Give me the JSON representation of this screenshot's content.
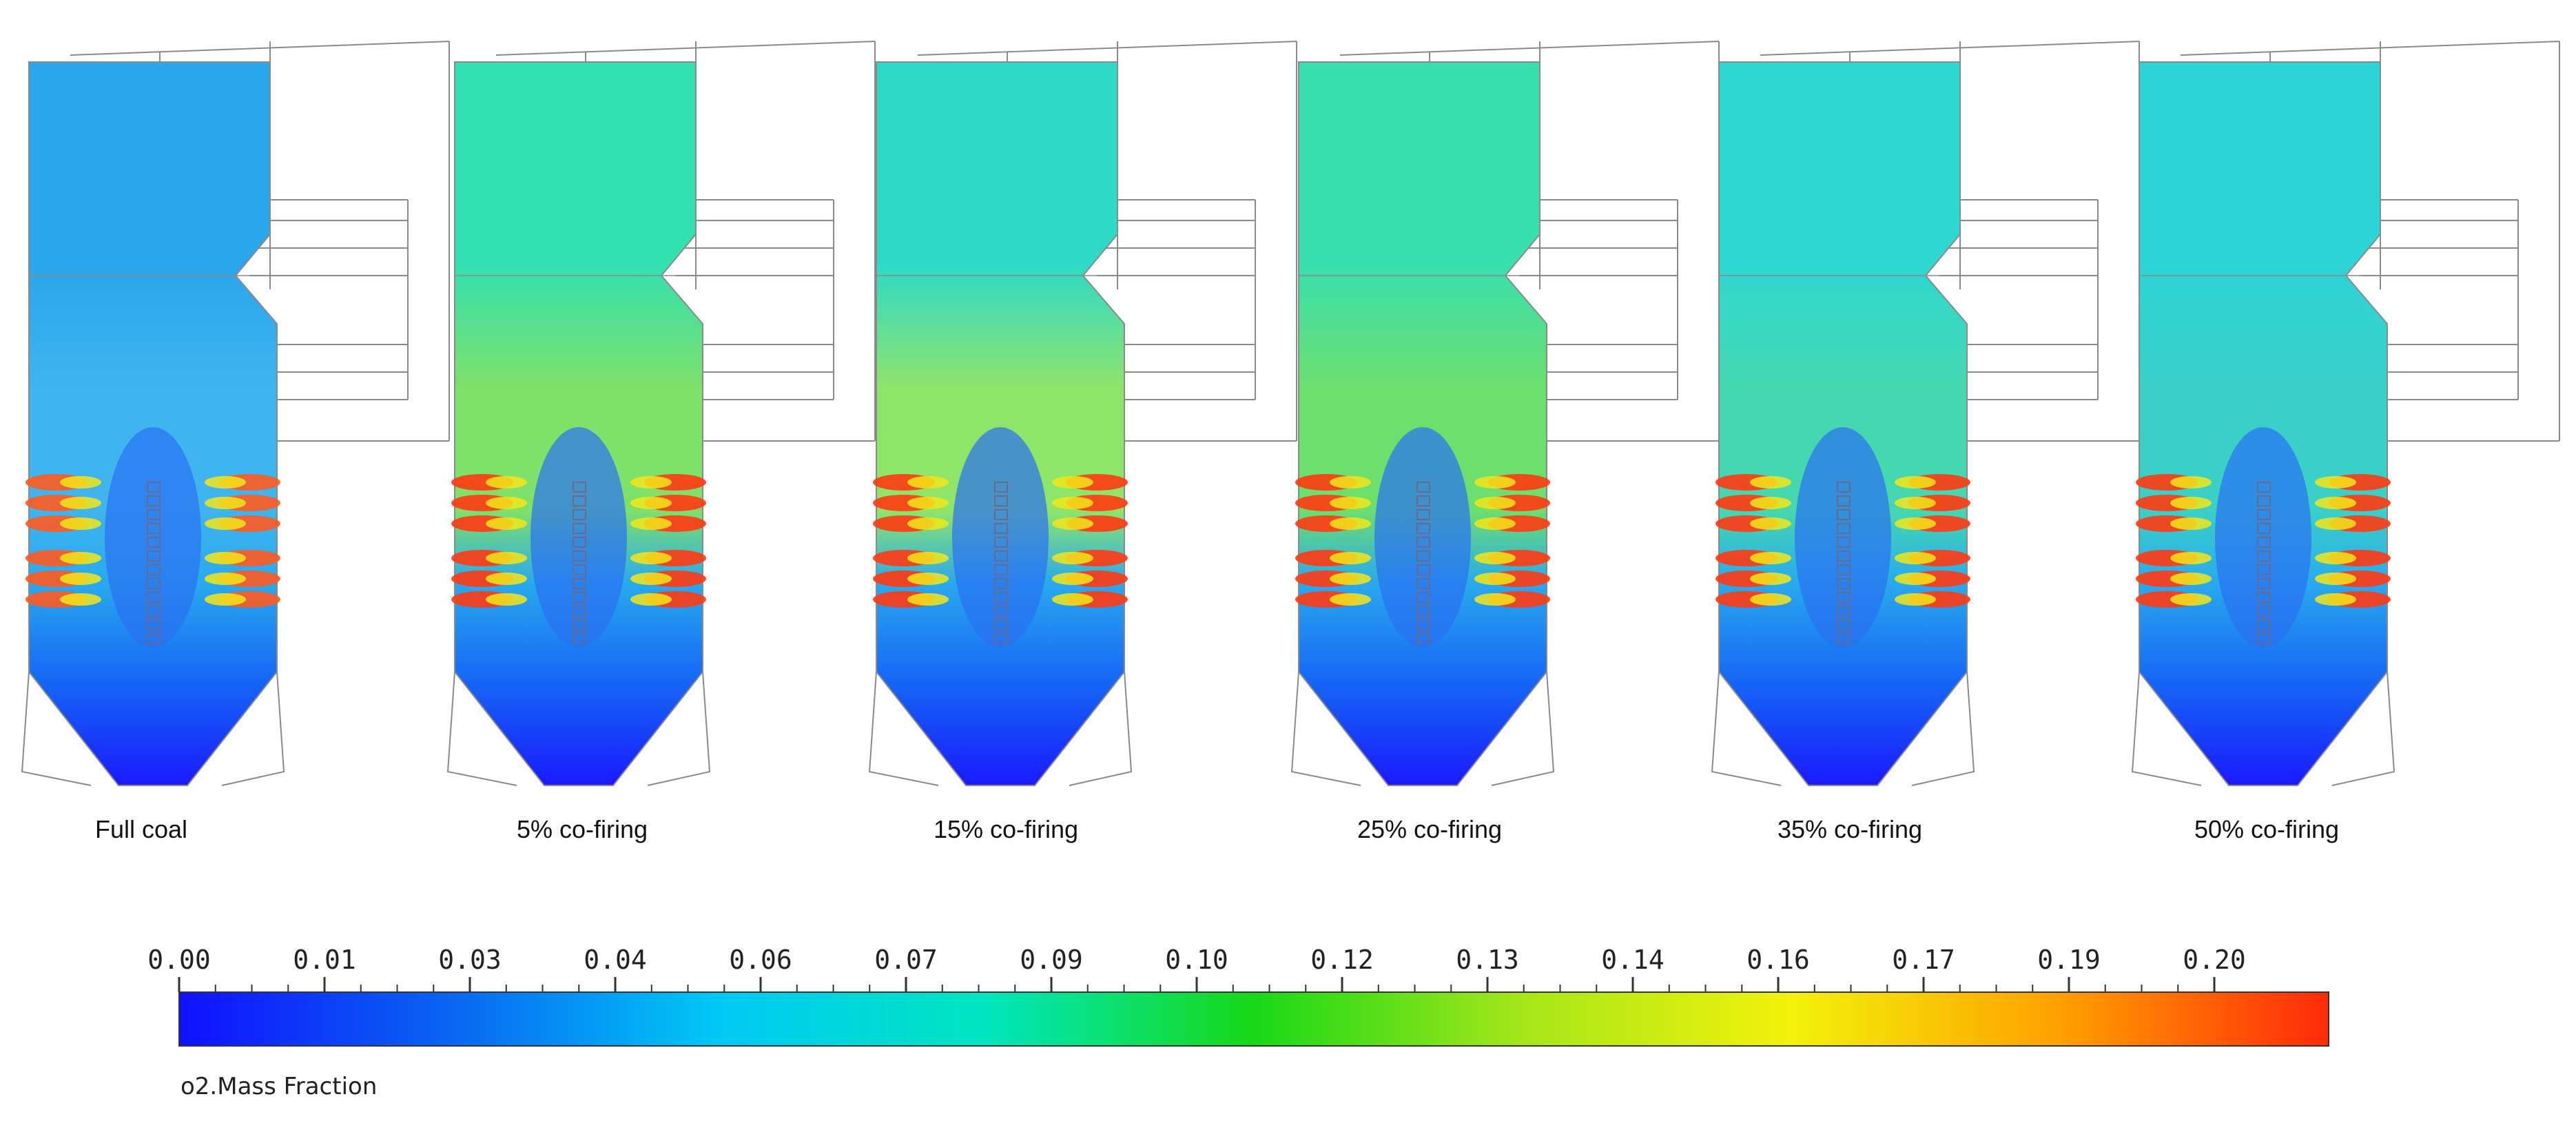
{
  "panels": [
    {
      "caption": "Full coal",
      "cofiring_percent": 0,
      "mid_color": "#3fb4ee",
      "upper_color": "#2aa6ea",
      "hot_color": "#ff5a1f"
    },
    {
      "caption": "5% co-firing",
      "cofiring_percent": 5,
      "mid_color": "#7fe06a",
      "upper_color": "#33e0b0",
      "hot_color": "#ff3a12"
    },
    {
      "caption": "15% co-firing",
      "cofiring_percent": 15,
      "mid_color": "#8ee56a",
      "upper_color": "#2fd9c8",
      "hot_color": "#ff3a12"
    },
    {
      "caption": "25% co-firing",
      "cofiring_percent": 25,
      "mid_color": "#6cdf6f",
      "upper_color": "#3adfae",
      "hot_color": "#ff3a12"
    },
    {
      "caption": "35% co-firing",
      "cofiring_percent": 35,
      "mid_color": "#45d8b0",
      "upper_color": "#2ed7d0",
      "hot_color": "#ff3a12"
    },
    {
      "caption": "50% co-firing",
      "cofiring_percent": 50,
      "mid_color": "#3ad0c8",
      "upper_color": "#2dd4d6",
      "hot_color": "#ff3a12"
    }
  ],
  "colorbar": {
    "title": "o2.Mass Fraction",
    "min": 0.0,
    "max": 0.205,
    "tick_labels": [
      "0.00",
      "0.01",
      "0.03",
      "0.04",
      "0.06",
      "0.07",
      "0.09",
      "0.10",
      "0.12",
      "0.13",
      "0.14",
      "0.16",
      "0.17",
      "0.19",
      "0.20"
    ],
    "gradient_stops": [
      "#1010ff",
      "#0a64f2",
      "#00c8f5",
      "#00e6c0",
      "#18d818",
      "#a6e61a",
      "#f2f20a",
      "#ffa000",
      "#ff2a0a"
    ]
  },
  "colors": {
    "cold_blue": "#1a1aff",
    "outline": "#8a8a8a"
  }
}
